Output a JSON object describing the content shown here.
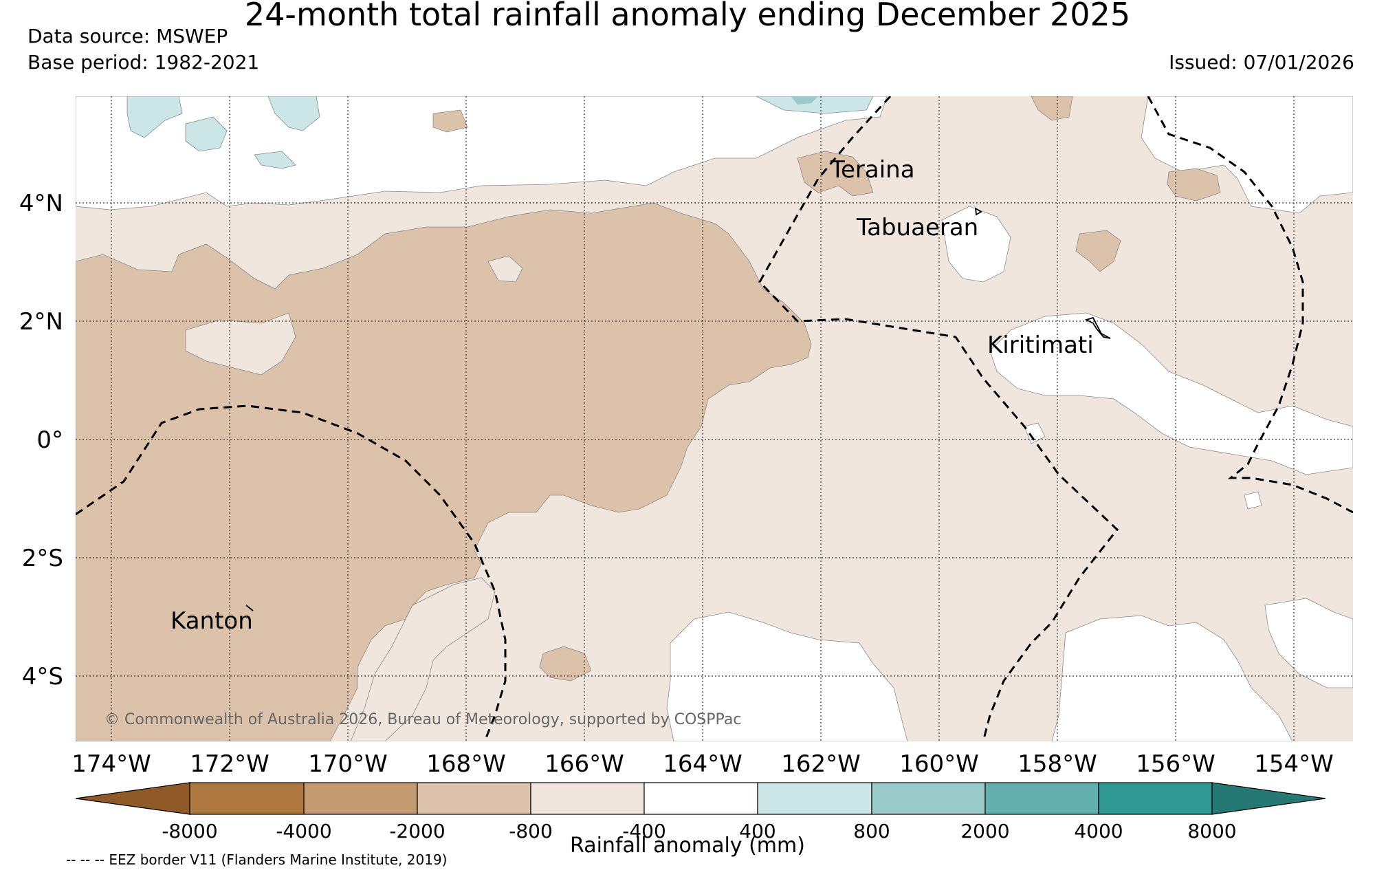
{
  "title": "24-month total rainfall anomaly ending December 2025",
  "data_source": "Data source: MSWEP",
  "base_period": "Base period: 1982-2021",
  "issued": "Issued: 07/01/2026",
  "copyright": "© Commonwealth of Australia 2026, Bureau of Meteorology, supported by COSPPac",
  "lat_labels": [
    "4°N",
    "2°N",
    "0°",
    "2°S",
    "4°S"
  ],
  "lon_labels": [
    "174°W",
    "172°W",
    "170°W",
    "168°W",
    "166°W",
    "164°W",
    "162°W",
    "160°W",
    "158°W",
    "156°W",
    "154°W"
  ],
  "places": {
    "teraina": "Teraina",
    "tabuaeran": "Tabuaeran",
    "kiritimati": "Kiritimati",
    "kanton": "Kanton"
  },
  "colorbar": {
    "title": "Rainfall anomaly (mm)",
    "ticks": [
      "-8000",
      "-4000",
      "-2000",
      "-800",
      "-400",
      "400",
      "800",
      "2000",
      "4000",
      "8000"
    ],
    "colors": [
      "#8f5a27",
      "#ad773f",
      "#c49a72",
      "#dcc2aa",
      "#f1e6dd",
      "#ffffff",
      "#cce5e6",
      "#9acaca",
      "#63afad",
      "#2f9893",
      "#257874"
    ]
  },
  "legend_note": "-- -- -- EEZ border V11 (Flanders Marine Institute, 2019)",
  "map_colors": {
    "ocean": "#ffffff",
    "light_dry": "#f1e6dd",
    "medium_dry": "#dcc2aa",
    "strong_dry": "#c49a72",
    "light_wet": "#cce5e6",
    "medium_wet": "#9acaca"
  }
}
